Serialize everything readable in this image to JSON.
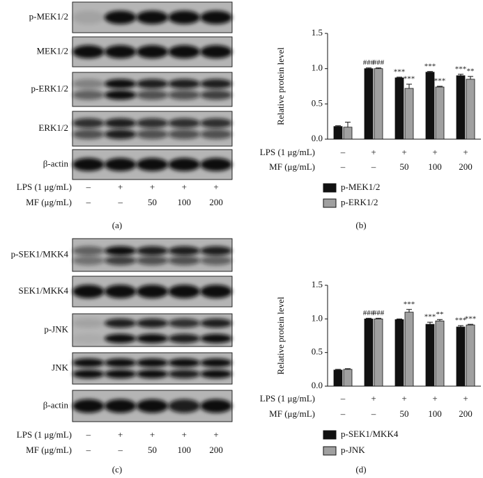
{
  "blots": [
    {
      "caption": "(a)",
      "bands": [
        "p-MEK1/2",
        "MEK1/2",
        "p-ERK1/2",
        "ERK1/2",
        "β-actin"
      ],
      "conditions": [
        {
          "label": "LPS (1 μg/mL)",
          "values": [
            "–",
            "+",
            "+",
            "+",
            "+"
          ]
        },
        {
          "label": "MF (μg/mL)",
          "values": [
            "–",
            "–",
            "50",
            "100",
            "200"
          ]
        }
      ]
    },
    {
      "caption": "(c)",
      "bands": [
        "p-SEK1/MKK4",
        "SEK1/MKK4",
        "p-JNK",
        "JNK",
        "β-actin"
      ],
      "conditions": [
        {
          "label": "LPS (1 μg/mL)",
          "values": [
            "–",
            "+",
            "+",
            "+",
            "+"
          ]
        },
        {
          "label": "MF (μg/mL)",
          "values": [
            "–",
            "–",
            "50",
            "100",
            "200"
          ]
        }
      ]
    }
  ],
  "chart_data": [
    {
      "type": "bar",
      "caption": "(b)",
      "y_label": "Relative protein level",
      "conditions": [
        {
          "label": "LPS (1 μg/mL)",
          "values": [
            "–",
            "+",
            "+",
            "+",
            "+"
          ]
        },
        {
          "label": "MF (μg/mL)",
          "values": [
            "–",
            "–",
            "50",
            "100",
            "200"
          ]
        }
      ],
      "ylim": [
        0,
        1.5
      ],
      "yticks": [
        {
          "value": 0,
          "label": "0.0"
        },
        {
          "value": 0.5,
          "label": "0.5"
        },
        {
          "value": 1,
          "label": "1.0"
        },
        {
          "value": 1.5,
          "label": "1.5"
        }
      ],
      "series": [
        {
          "name": "p-MEK1/2",
          "color": "#111111",
          "values": [
            0.18,
            1.0,
            0.87,
            0.95,
            0.9
          ],
          "errors": [
            0.01,
            0.01,
            0.01,
            0.01,
            0.02
          ],
          "annotations": [
            null,
            "###",
            "***",
            "***",
            "***"
          ]
        },
        {
          "name": "p-ERK1/2",
          "color": "#a0a0a0",
          "values": [
            0.17,
            1.0,
            0.72,
            0.74,
            0.85
          ],
          "errors": [
            0.07,
            0.01,
            0.06,
            0.01,
            0.04
          ],
          "annotations": [
            null,
            "###",
            "***",
            "***",
            "**"
          ]
        }
      ]
    },
    {
      "type": "bar",
      "caption": "(d)",
      "y_label": "Relative protein level",
      "conditions": [
        {
          "label": "LPS (1 μg/mL)",
          "values": [
            "–",
            "+",
            "+",
            "+",
            "+"
          ]
        },
        {
          "label": "MF (μg/mL)",
          "values": [
            "–",
            "–",
            "50",
            "100",
            "200"
          ]
        }
      ],
      "ylim": [
        0,
        1.5
      ],
      "yticks": [
        {
          "value": 0,
          "label": "0.0"
        },
        {
          "value": 0.5,
          "label": "0.5"
        },
        {
          "value": 1,
          "label": "1.0"
        },
        {
          "value": 1.5,
          "label": "1.5"
        }
      ],
      "series": [
        {
          "name": "p-SEK1/MKK4",
          "color": "#111111",
          "values": [
            0.24,
            1.0,
            0.99,
            0.92,
            0.88
          ],
          "errors": [
            0.01,
            0.01,
            0.01,
            0.03,
            0.02
          ],
          "annotations": [
            null,
            "###",
            null,
            "***",
            "***"
          ]
        },
        {
          "name": "p-JNK",
          "color": "#a0a0a0",
          "values": [
            0.25,
            1.0,
            1.1,
            0.97,
            0.91
          ],
          "errors": [
            0.01,
            0.01,
            0.04,
            0.02,
            0.01
          ],
          "annotations": [
            null,
            "###",
            "***",
            "**",
            "***"
          ]
        }
      ]
    }
  ]
}
